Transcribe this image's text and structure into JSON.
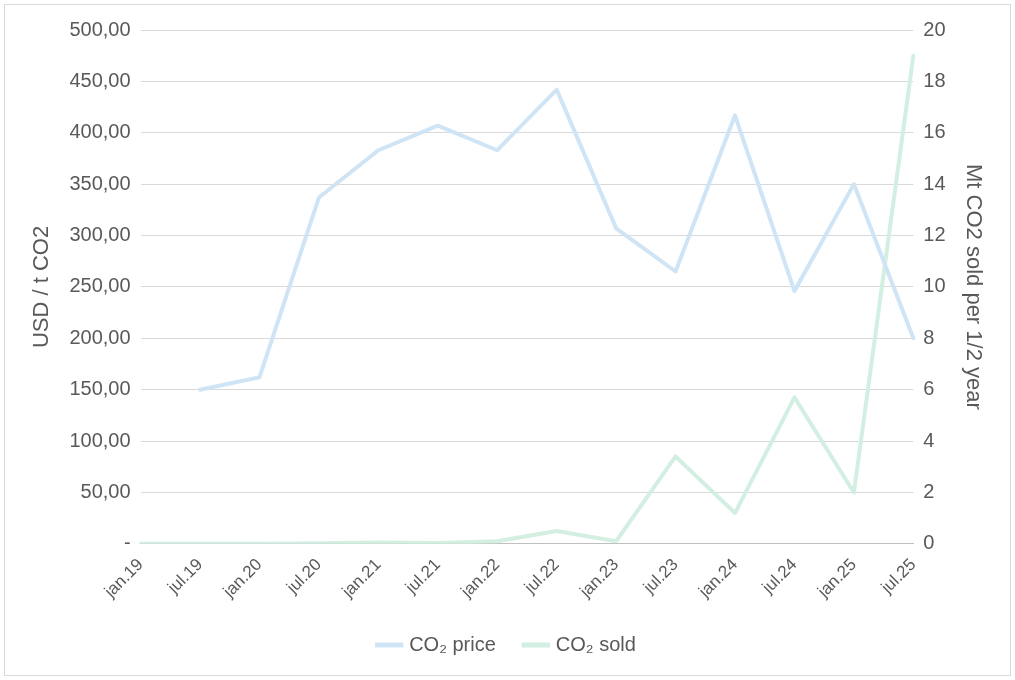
{
  "chart_data": {
    "type": "line",
    "ylabel": "USD / t CO2",
    "y2label": "Mt CO2 sold per 1/2 year",
    "categories": [
      "jan.19",
      "jul.19",
      "jan.20",
      "jul.20",
      "jan.21",
      "jul.21",
      "jan.22",
      "jul.22",
      "jan.23",
      "jul.23",
      "jan.24",
      "jul.24",
      "jan.25",
      "jul.25"
    ],
    "series": [
      {
        "name": "CO₂ price",
        "color": "#cfe4f5",
        "values": [
          null,
          150,
          162,
          337,
          383,
          407,
          383,
          442,
          307,
          265,
          417,
          246,
          350,
          200
        ]
      },
      {
        "name": "CO₂ sold",
        "color": "#d3efe2",
        "axis": "y2",
        "values": [
          0,
          0,
          0,
          0.02,
          0.05,
          0.03,
          0.1,
          0.5,
          0.1,
          3.4,
          1.2,
          5.7,
          2.0,
          19
        ]
      }
    ],
    "ylim": [
      0,
      500
    ],
    "yticks": [
      {
        "value": 0,
        "label": "-"
      },
      {
        "value": 50,
        "label": "50,00"
      },
      {
        "value": 100,
        "label": "100,00"
      },
      {
        "value": 150,
        "label": "150,00"
      },
      {
        "value": 200,
        "label": "200,00"
      },
      {
        "value": 250,
        "label": "250,00"
      },
      {
        "value": 300,
        "label": "300,00"
      },
      {
        "value": 350,
        "label": "350,00"
      },
      {
        "value": 400,
        "label": "400,00"
      },
      {
        "value": 450,
        "label": "450,00"
      },
      {
        "value": 500,
        "label": "500,00"
      }
    ],
    "y2lim": [
      0,
      20
    ],
    "y2ticks": [
      0,
      2,
      4,
      6,
      8,
      10,
      12,
      14,
      16,
      18,
      20
    ],
    "grid": "y",
    "legend": "bottom",
    "marker": "none",
    "line_style": "solid"
  }
}
